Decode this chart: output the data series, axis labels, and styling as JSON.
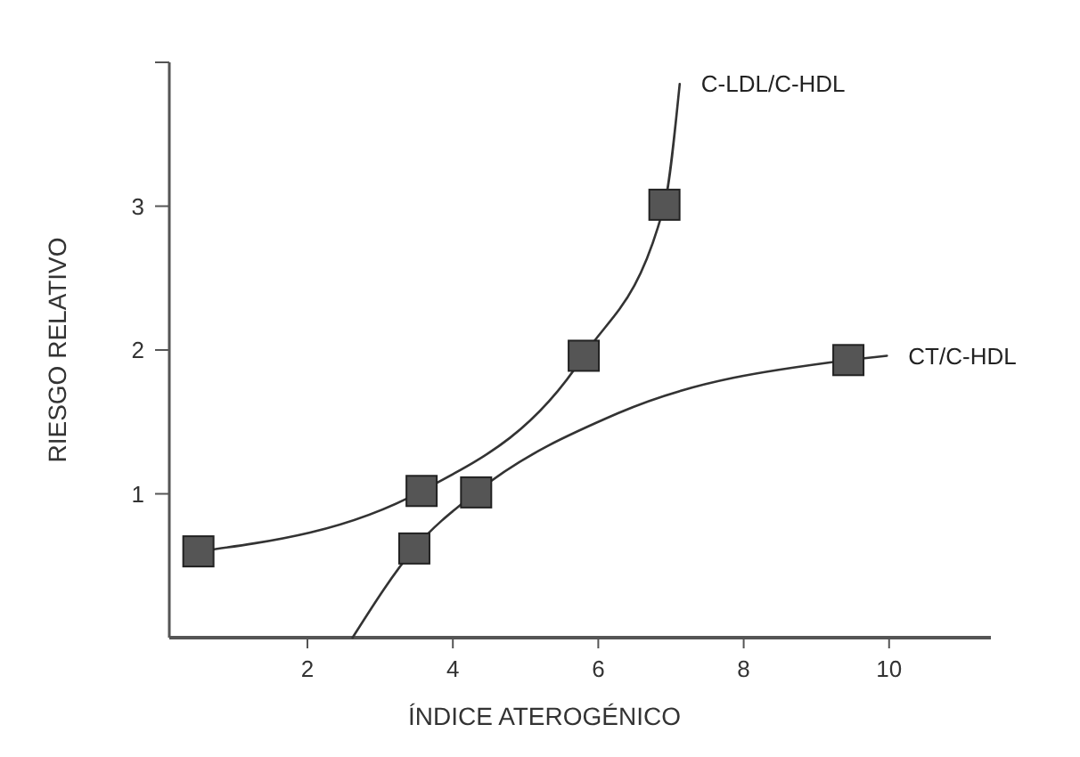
{
  "chart_data": {
    "type": "line",
    "xlabel": "ÍNDICE ATEROGÉNICO",
    "ylabel": "RIESGO RELATIVO",
    "xlim": [
      0.1,
      11.4
    ],
    "ylim": [
      0,
      4
    ],
    "xticks": [
      2,
      4,
      6,
      8,
      10
    ],
    "yticks": [
      1,
      2,
      3,
      {
        "value": 4,
        "label": null
      }
    ],
    "grid": false,
    "series": [
      {
        "name": "C-LDL/C-HDL",
        "color": "#333333",
        "marker": "none",
        "x": [
          0.5,
          3.57,
          5.8,
          6.91,
          7.12
        ],
        "values": [
          0.6,
          1.02,
          1.96,
          3.01,
          3.85
        ]
      },
      {
        "name": "CT/C-HDL",
        "color": "#333333",
        "marker": "none",
        "x": [
          2.62,
          3.47,
          4.32,
          6.27,
          9.44,
          9.97
        ],
        "values": [
          0,
          0.62,
          1.01,
          1.56,
          1.93,
          1.96
        ]
      },
      {
        "type": "scatter",
        "color": "#555555",
        "marker": "square",
        "x": [
          0.5,
          3.57,
          5.8,
          6.91
        ],
        "values": [
          0.6,
          1.02,
          1.96,
          3.01
        ]
      },
      {
        "type": "scatter",
        "color": "#555555",
        "marker": "square",
        "x": [
          3.47,
          4.32,
          9.44
        ],
        "values": [
          0.62,
          1.01,
          1.93
        ]
      }
    ]
  }
}
